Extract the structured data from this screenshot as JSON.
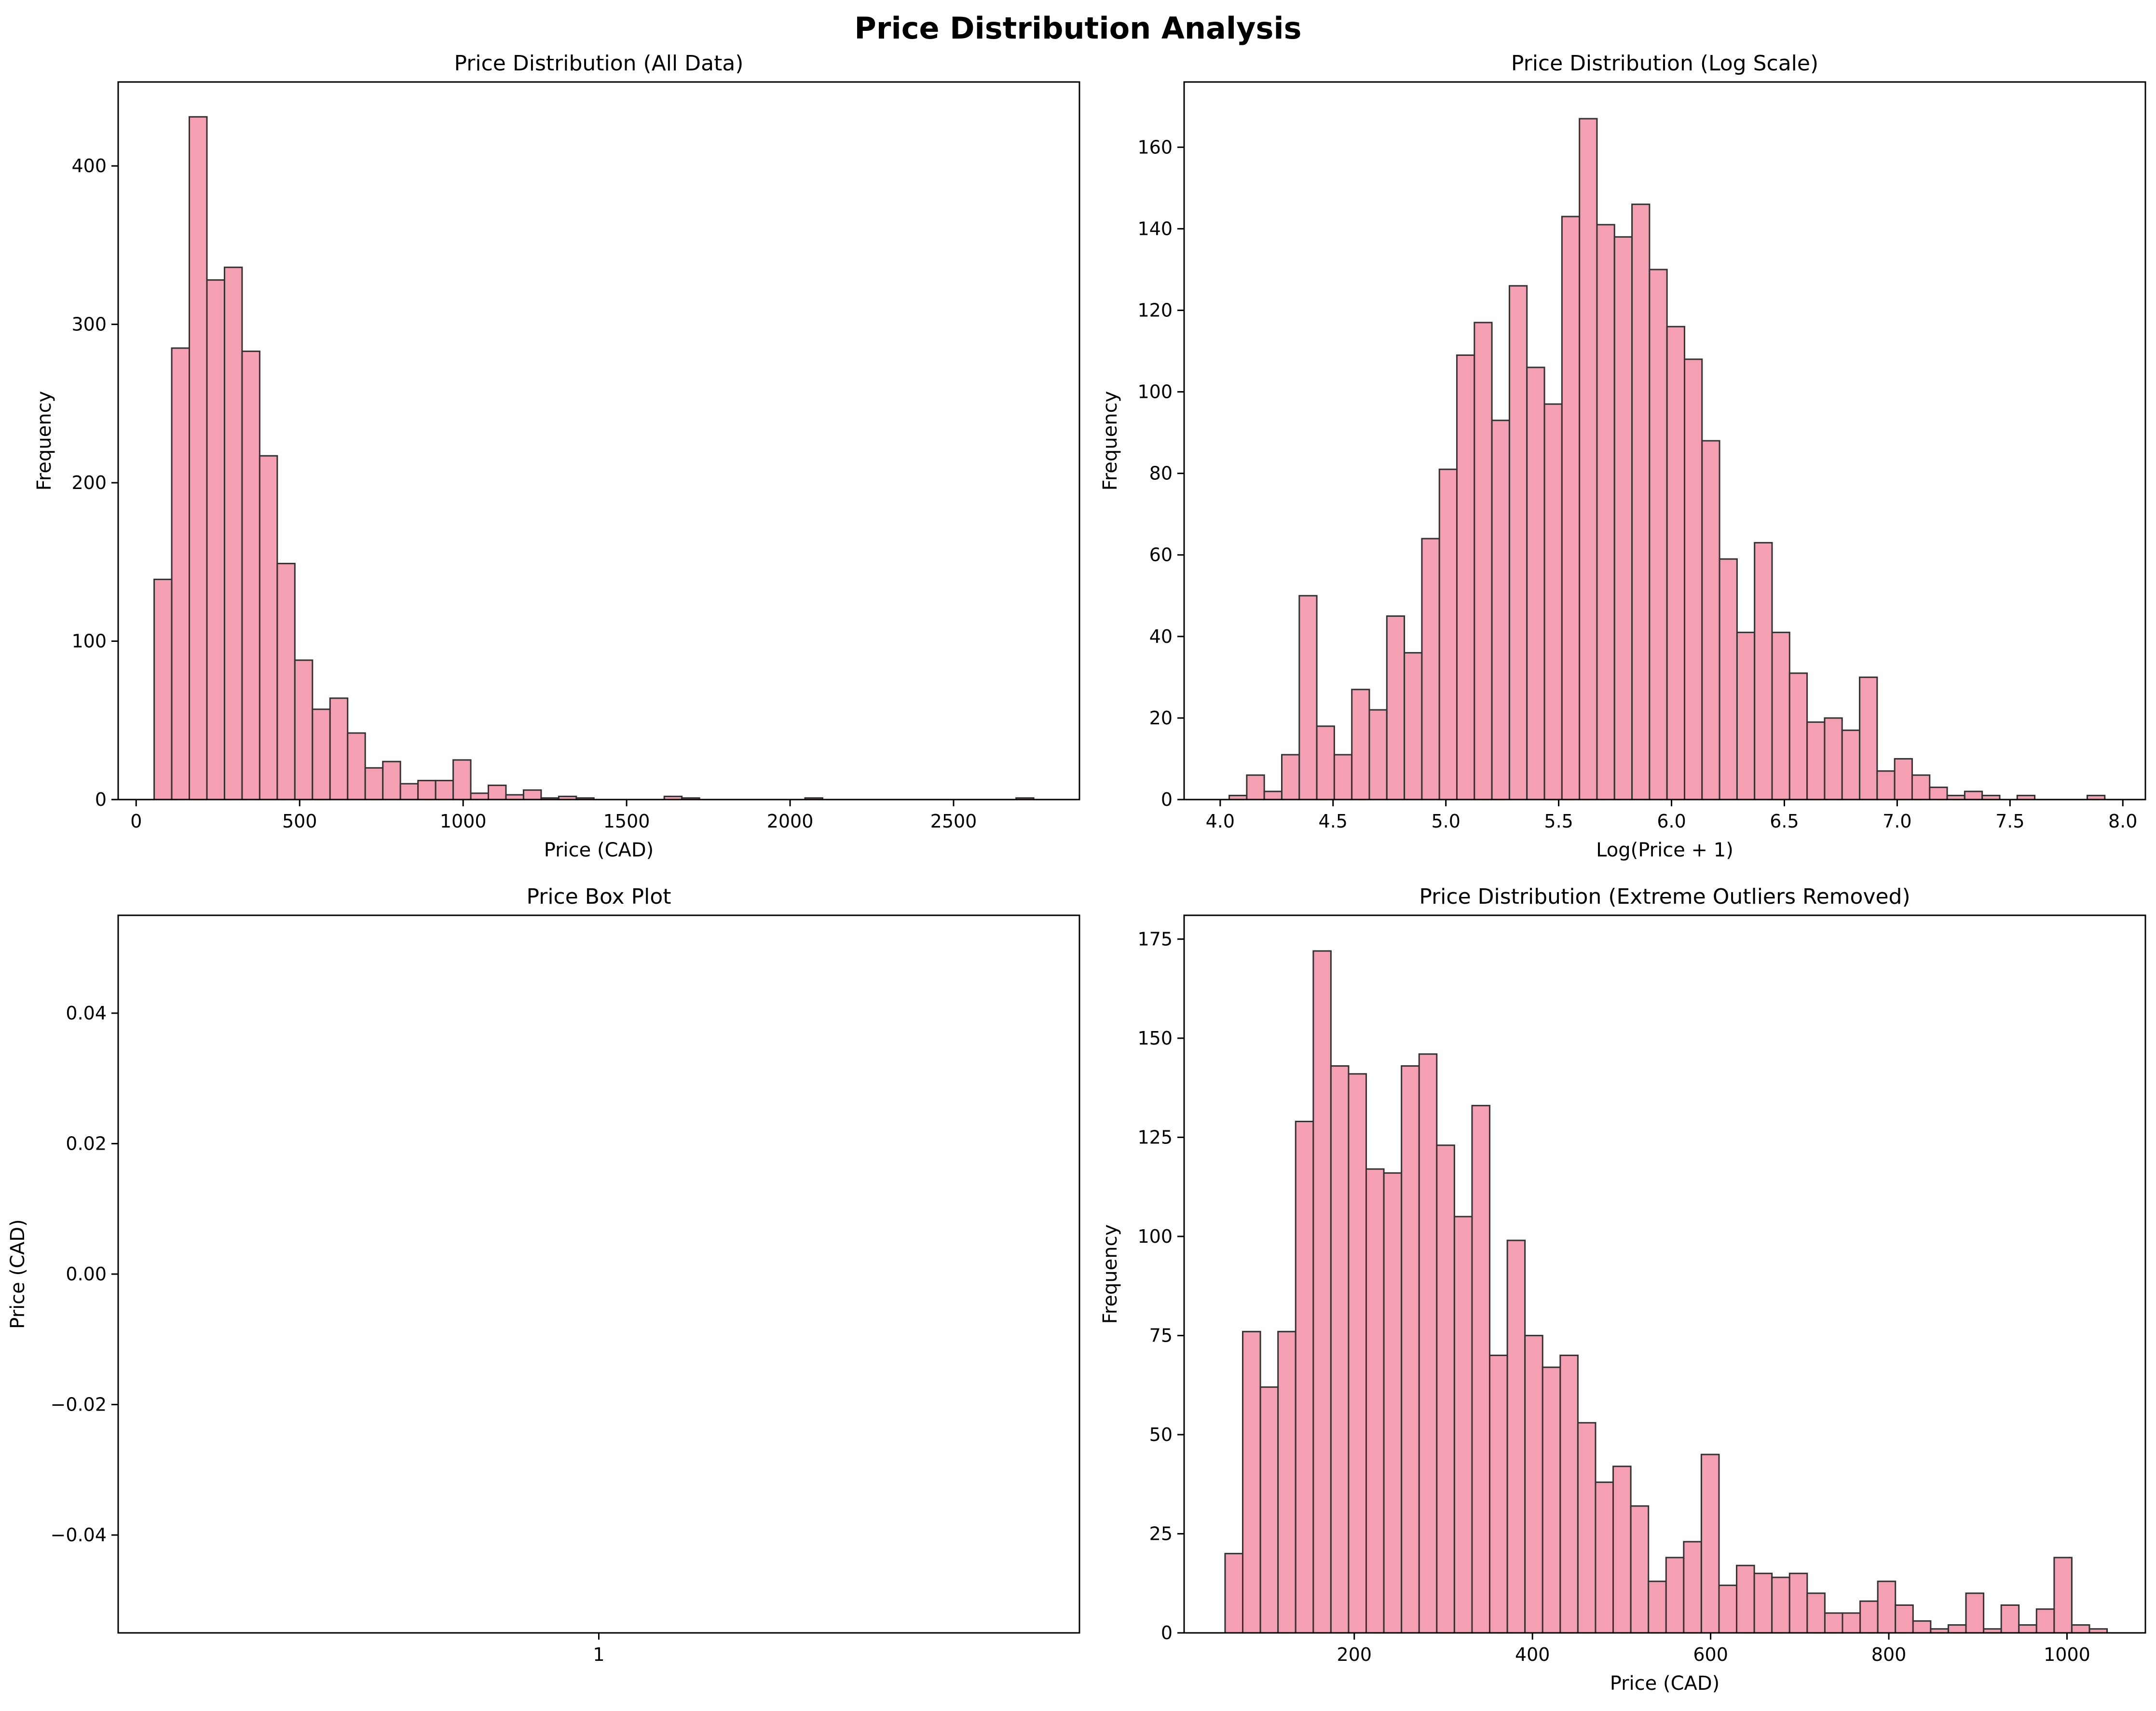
{
  "figure": {
    "title": "Price Distribution Analysis",
    "bar_color": "#f4a0b2",
    "edge_color": "#333333"
  },
  "chart_data": [
    {
      "type": "bar",
      "title": "Price Distribution (All Data)",
      "xlabel": "Price (CAD)",
      "ylabel": "Frequency",
      "xlim": [
        -55,
        2885
      ],
      "ylim": [
        0,
        453
      ],
      "xticks": [
        0,
        500,
        1000,
        1500,
        2000,
        2500
      ],
      "yticks": [
        0,
        100,
        200,
        300,
        400
      ],
      "bin_start": 55,
      "bin_width": 53.8,
      "values": [
        139,
        285,
        431,
        328,
        336,
        283,
        217,
        149,
        88,
        57,
        64,
        42,
        20,
        24,
        10,
        12,
        12,
        25,
        4,
        9,
        3,
        6,
        1,
        2,
        1,
        0,
        0,
        0,
        0,
        2,
        1,
        0,
        0,
        0,
        0,
        0,
        0,
        1,
        0,
        0,
        0,
        0,
        0,
        0,
        0,
        0,
        0,
        0,
        0,
        1
      ]
    },
    {
      "type": "bar",
      "title": "Price Distribution (Log Scale)",
      "xlabel": "Log(Price + 1)",
      "ylabel": "Frequency",
      "xlim": [
        3.84,
        8.1
      ],
      "ylim": [
        0,
        176
      ],
      "xticks": [
        4.0,
        4.5,
        5.0,
        5.5,
        6.0,
        6.5,
        7.0,
        7.5,
        8.0
      ],
      "yticks": [
        0,
        20,
        40,
        60,
        80,
        100,
        120,
        140,
        160
      ],
      "bin_start": 4.04,
      "bin_width": 0.0776,
      "values": [
        1,
        6,
        2,
        11,
        50,
        18,
        11,
        27,
        22,
        45,
        36,
        64,
        81,
        109,
        117,
        93,
        126,
        106,
        97,
        143,
        167,
        141,
        138,
        146,
        130,
        116,
        108,
        88,
        59,
        41,
        63,
        41,
        31,
        19,
        20,
        17,
        30,
        7,
        10,
        6,
        3,
        1,
        2,
        1,
        0,
        1,
        0,
        0,
        0,
        1
      ]
    },
    {
      "type": "box",
      "title": "Price Box Plot",
      "xlabel": "",
      "ylabel": "Price (CAD)",
      "xlim": [
        0.5,
        1.5
      ],
      "ylim": [
        -0.055,
        0.055
      ],
      "xticks": [
        "1"
      ],
      "yticks": [
        -0.04,
        -0.02,
        0.0,
        0.02,
        0.04
      ],
      "ytick_labels": [
        "−0.04",
        "−0.02",
        "0.00",
        "0.02",
        "0.04"
      ],
      "values": []
    },
    {
      "type": "bar",
      "title": "Price Distribution (Extreme Outliers Removed)",
      "xlabel": "Price (CAD)",
      "ylabel": "Frequency",
      "xlim": [
        9,
        1088
      ],
      "ylim": [
        0,
        181
      ],
      "xticks": [
        200,
        400,
        600,
        800,
        1000
      ],
      "yticks": [
        0,
        25,
        50,
        75,
        100,
        125,
        150,
        175
      ],
      "bin_start": 55,
      "bin_width": 19.8,
      "values": [
        20,
        76,
        62,
        76,
        129,
        172,
        143,
        141,
        117,
        116,
        143,
        146,
        123,
        105,
        133,
        70,
        99,
        75,
        67,
        70,
        53,
        38,
        42,
        32,
        13,
        19,
        23,
        45,
        12,
        17,
        15,
        14,
        15,
        10,
        5,
        5,
        8,
        13,
        7,
        3,
        1,
        2,
        10,
        1,
        7,
        2,
        6,
        19,
        2,
        1
      ]
    }
  ]
}
